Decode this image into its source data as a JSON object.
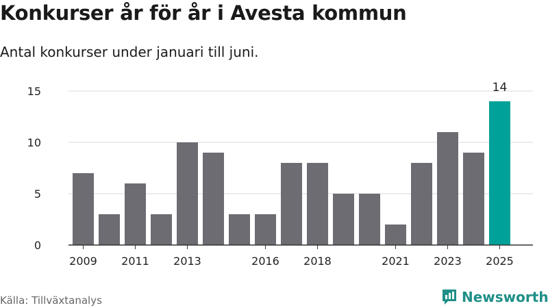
{
  "header": {
    "title": "Konkurser år för år i Avesta kommun",
    "subtitle": "Antal konkurser under januari till juni."
  },
  "footer": {
    "source": "Källa: Tillväxtanalys",
    "brand": "Newsworthy",
    "brand_color": "#1e8f88"
  },
  "chart_data": {
    "type": "bar",
    "title": "Konkurser år för år i Avesta kommun",
    "subtitle": "Antal konkurser under januari till juni.",
    "categories": [
      "2009",
      "2010",
      "2011",
      "2012",
      "2013",
      "2014",
      "2015",
      "2016",
      "2017",
      "2018",
      "2019",
      "2020",
      "2021",
      "2022",
      "2023",
      "2024",
      "2025"
    ],
    "x_tick_labels": [
      "2009",
      "2011",
      "2013",
      "2016",
      "2018",
      "2021",
      "2023",
      "2025"
    ],
    "values": [
      7,
      3,
      6,
      3,
      10,
      9,
      3,
      3,
      8,
      8,
      5,
      5,
      2,
      8,
      11,
      9,
      14
    ],
    "ylim": [
      0,
      15
    ],
    "y_ticks": [
      0,
      5,
      10,
      15
    ],
    "grid": true,
    "xlabel": "",
    "ylabel": "",
    "bar_color": "#6d6c72",
    "highlight_color": "#00a199",
    "highlight_category": "2025",
    "data_labels": [
      {
        "category": "2025",
        "text": "14"
      }
    ]
  }
}
